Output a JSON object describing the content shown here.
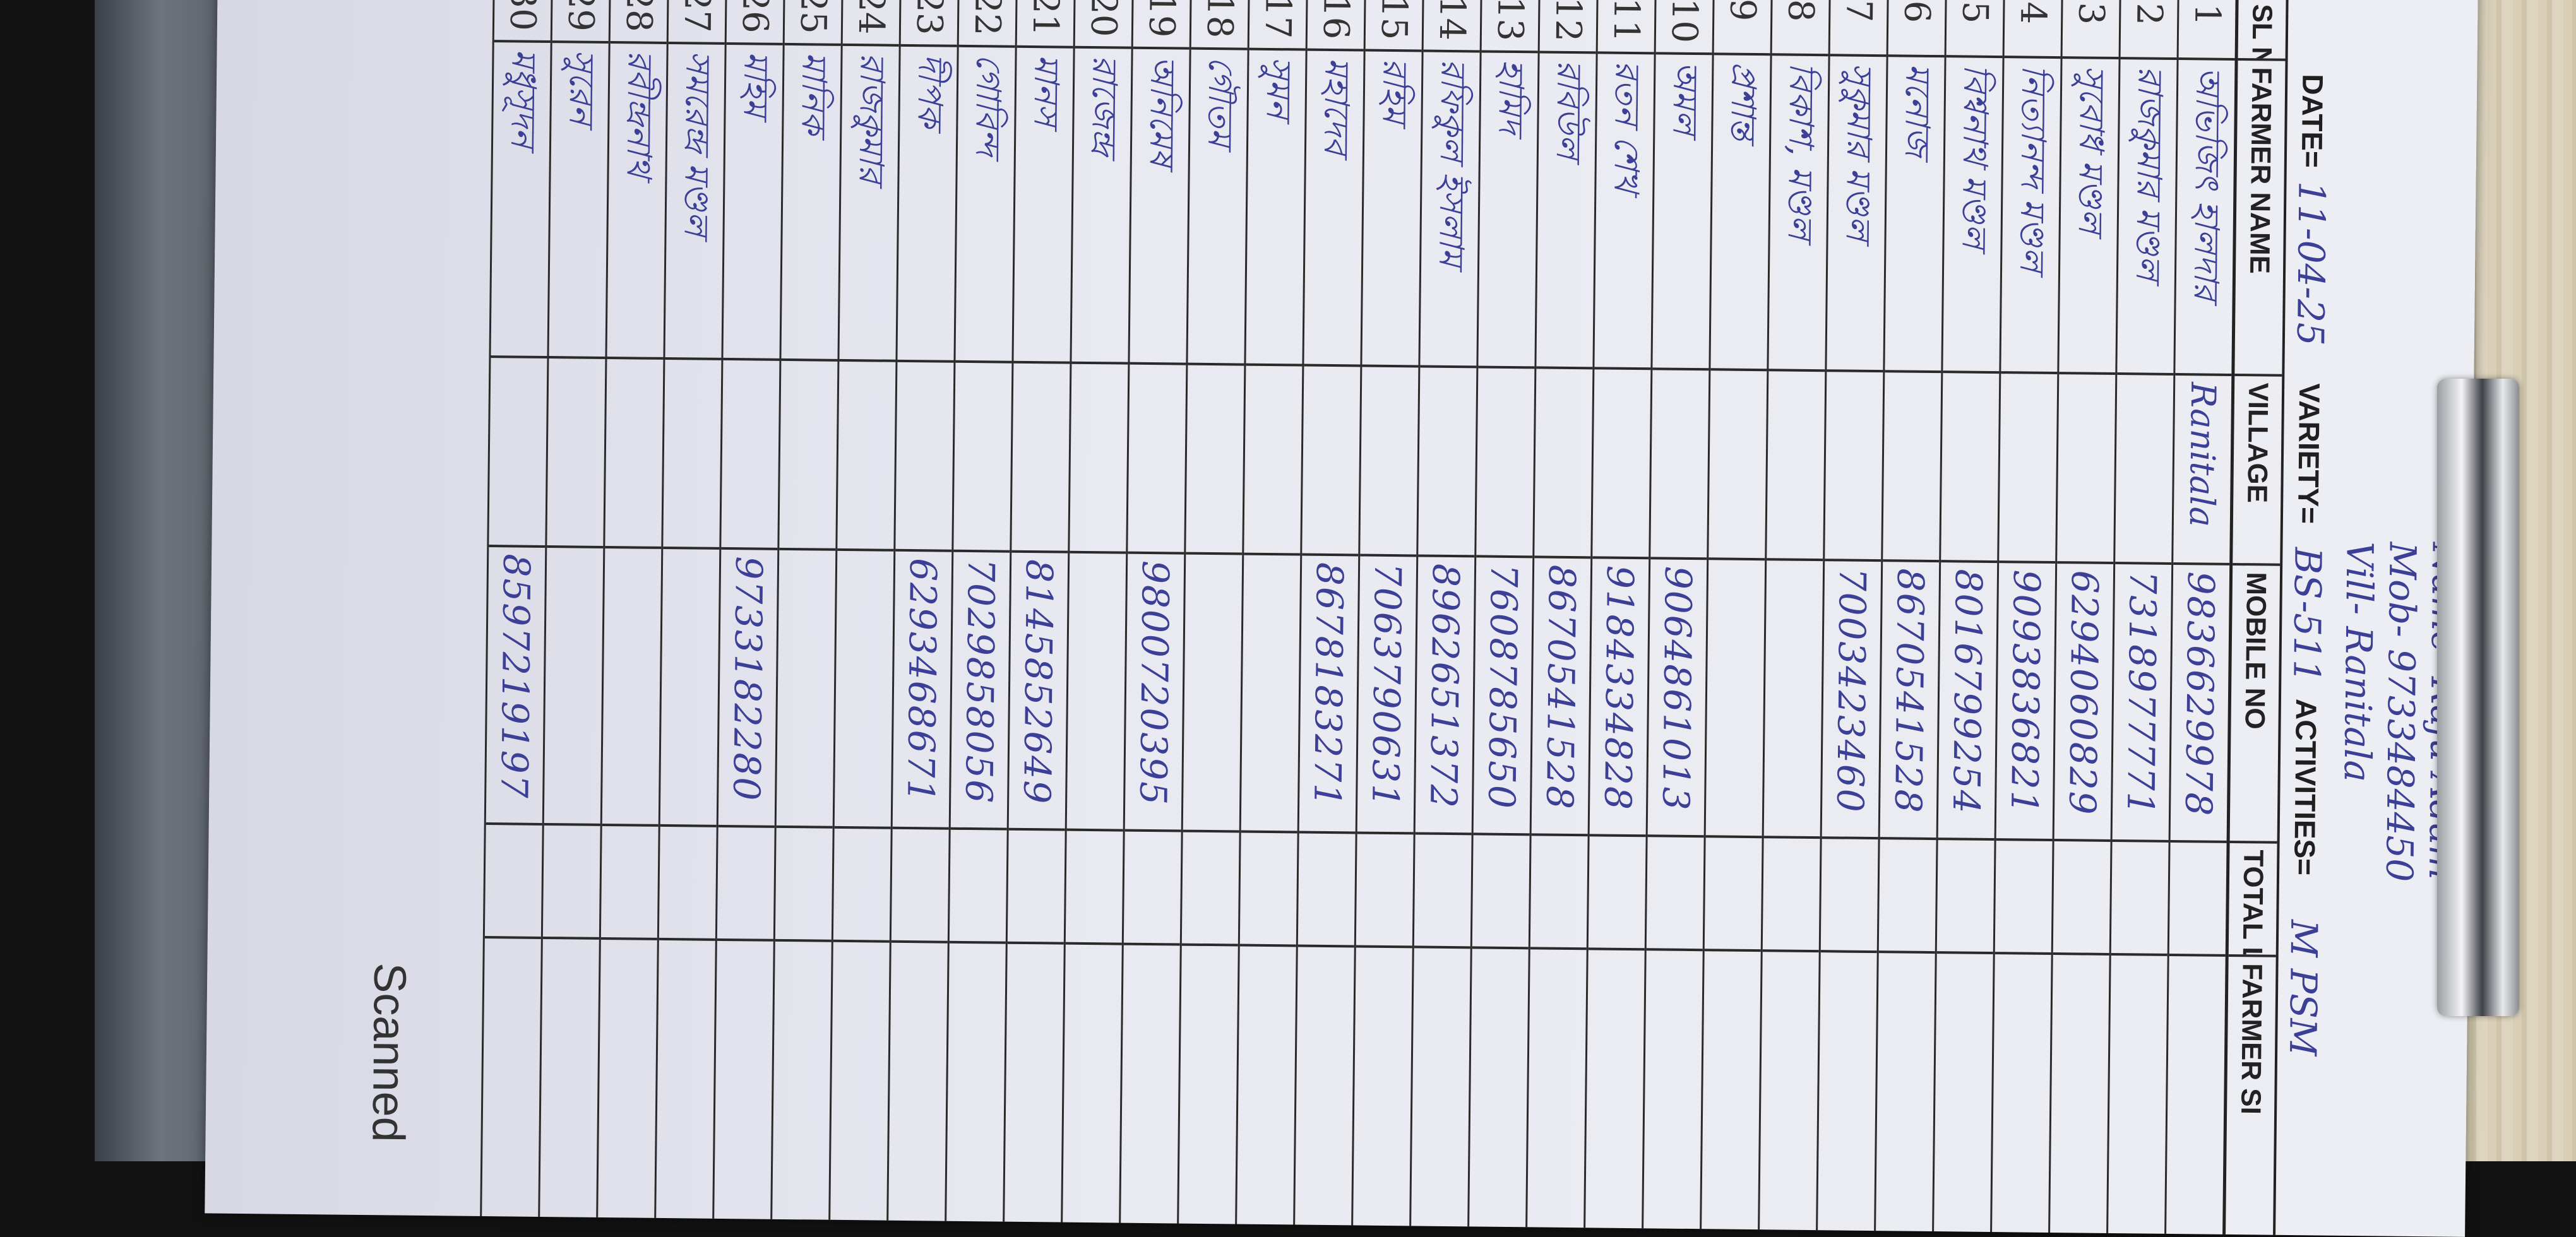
{
  "contact": {
    "name": "Name- Raju Adam",
    "mobile": "Mob- 9733484450",
    "village": "Vill- Ranitala"
  },
  "form": {
    "date_label": "DATE=",
    "date_value": "11-04-25",
    "variety_label": "VARIETY=",
    "variety_value": "BS-511",
    "activities_label": "ACTIVITIES=",
    "activities_value": "M PSM"
  },
  "table": {
    "headers": [
      "SL NO",
      "FARMER NAME",
      "VILLAGE",
      "MOBILE NO",
      "TOTAL LAND",
      "FARMER SI"
    ],
    "rows": [
      {
        "sl": "1",
        "name": "অভিজিৎ হালদার",
        "village": "Ranitala",
        "mobile": "9836629978"
      },
      {
        "sl": "2",
        "name": "রাজকুমার মণ্ডল",
        "village": "",
        "mobile": "7318977771"
      },
      {
        "sl": "3",
        "name": "সুবোধ মণ্ডল",
        "village": "",
        "mobile": "6294060829"
      },
      {
        "sl": "4",
        "name": "নিত্যানন্দ মণ্ডল",
        "village": "",
        "mobile": "9093836821"
      },
      {
        "sl": "5",
        "name": "বিশ্বনাথ মণ্ডল",
        "village": "",
        "mobile": "8016799254"
      },
      {
        "sl": "6",
        "name": "মনোজ",
        "village": "",
        "mobile": "8670541528"
      },
      {
        "sl": "7",
        "name": "সুকুমার মণ্ডল",
        "village": "",
        "mobile": "7003423460"
      },
      {
        "sl": "8",
        "name": "বিকাশ, মণ্ডল",
        "village": "",
        "mobile": ""
      },
      {
        "sl": "9",
        "name": "প্রশান্ত",
        "village": "",
        "mobile": ""
      },
      {
        "sl": "10",
        "name": "অমল",
        "village": "",
        "mobile": "9064861013"
      },
      {
        "sl": "11",
        "name": "রতন শেখ",
        "village": "",
        "mobile": "9184334828"
      },
      {
        "sl": "12",
        "name": "রবিউল",
        "village": "",
        "mobile": "8670541528"
      },
      {
        "sl": "13",
        "name": "হামিদ",
        "village": "",
        "mobile": "7608785650"
      },
      {
        "sl": "14",
        "name": "রফিকুল ইসলাম",
        "village": "",
        "mobile": "8962651372"
      },
      {
        "sl": "15",
        "name": "রহিম",
        "village": "",
        "mobile": "7063790631"
      },
      {
        "sl": "16",
        "name": "মহাদেব",
        "village": "",
        "mobile": "8678183271"
      },
      {
        "sl": "17",
        "name": "সুমন",
        "village": "",
        "mobile": ""
      },
      {
        "sl": "18",
        "name": "গৌতম",
        "village": "",
        "mobile": ""
      },
      {
        "sl": "19",
        "name": "অনিমেষ",
        "village": "",
        "mobile": "9800720395"
      },
      {
        "sl": "20",
        "name": "রাজেন্দ্র",
        "village": "",
        "mobile": ""
      },
      {
        "sl": "21",
        "name": "মানস",
        "village": "",
        "mobile": "8145852649"
      },
      {
        "sl": "22",
        "name": "গোবিন্দ",
        "village": "",
        "mobile": "7029858056"
      },
      {
        "sl": "23",
        "name": "দীপক",
        "village": "",
        "mobile": "6293468671"
      },
      {
        "sl": "24",
        "name": "রাজকুমার",
        "village": "",
        "mobile": ""
      },
      {
        "sl": "25",
        "name": "মানিক",
        "village": "",
        "mobile": ""
      },
      {
        "sl": "26",
        "name": "মহিম",
        "village": "",
        "mobile": "9733182280"
      },
      {
        "sl": "27",
        "name": "সমরেন্দ্র মণ্ডল",
        "village": "",
        "mobile": ""
      },
      {
        "sl": "28",
        "name": "রবীন্দ্রনাথ",
        "village": "",
        "mobile": ""
      },
      {
        "sl": "29",
        "name": "সুরেন",
        "village": "",
        "mobile": ""
      },
      {
        "sl": "30",
        "name": "মধুসূদন",
        "village": "",
        "mobile": "8597219197"
      }
    ]
  },
  "footer": {
    "scanned_text": "Scanned"
  },
  "colors": {
    "ink_blue": "#3c3f96",
    "paper": "#eceef3",
    "print": "#1f1f1f"
  }
}
